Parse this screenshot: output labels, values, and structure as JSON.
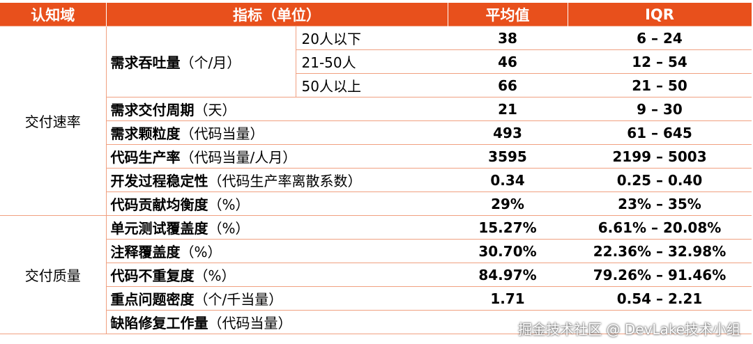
{
  "headers": {
    "domain": "认知域",
    "metric": "指标（单位）",
    "avg": "平均值",
    "iqr": "IQR"
  },
  "categories": {
    "rate": "交付速率",
    "quality": "交付质量"
  },
  "rows": [
    {
      "name": "需求吞吐量",
      "unit": "（个/月）",
      "sub": "20人以下",
      "avg": "38",
      "iqr": "6 – 24"
    },
    {
      "sub": "21-50人",
      "avg": "46",
      "iqr": "12 – 54"
    },
    {
      "sub": "50人以上",
      "avg": "66",
      "iqr": "21 – 50"
    },
    {
      "name": "需求交付周期",
      "unit": "（天）",
      "avg": "21",
      "iqr": "9 – 30"
    },
    {
      "name": "需求颗粒度",
      "unit": "（代码当量）",
      "avg": "493",
      "iqr": "61 – 645"
    },
    {
      "name": "代码生产率",
      "unit": "（代码当量/人月）",
      "avg": "3595",
      "iqr": "2199 – 5003"
    },
    {
      "name": "开发过程稳定性",
      "unit": "（代码生产率离散系数）",
      "avg": "0.34",
      "iqr": "0.25 – 0.40"
    },
    {
      "name": "代码贡献均衡度",
      "unit": "（%）",
      "avg": "29%",
      "iqr": "23% – 35%"
    },
    {
      "name": "单元测试覆盖度",
      "unit": "（%）",
      "avg": "15.27%",
      "iqr": "6.61% – 20.08%"
    },
    {
      "name": "注释覆盖度",
      "unit": "（%）",
      "avg": "30.70%",
      "iqr": "22.36% – 32.98%"
    },
    {
      "name": "代码不重复度",
      "unit": "（%）",
      "avg": "84.97%",
      "iqr": "79.26% – 91.46%"
    },
    {
      "name": "重点问题密度",
      "unit": "（个/千当量）",
      "avg": "1.71",
      "iqr": "0.54 – 2.21"
    },
    {
      "name": "缺陷修复工作量",
      "unit": "（代码当量）",
      "avg": "",
      "iqr": ""
    }
  ],
  "watermark": "掘金技术社区 @ DevLake技术小组",
  "colors": {
    "header_bg": "#e8501c",
    "header_text": "#ffffff",
    "border": "#f0a080"
  }
}
